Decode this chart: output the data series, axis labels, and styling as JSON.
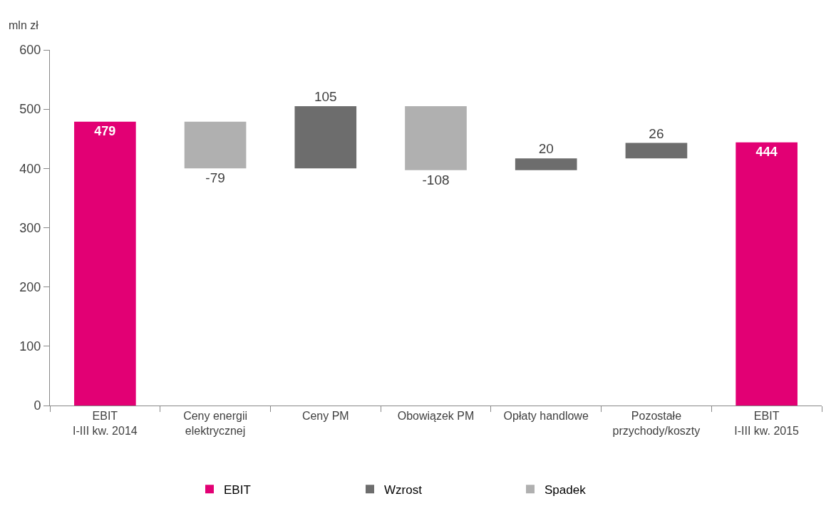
{
  "chart_data": {
    "type": "bar",
    "ylabel": "mln zł",
    "categories": [
      "EBIT\nI-III kw. 2014",
      "Ceny energii\nelektrycznej",
      "Ceny PM",
      "Obowiązek PM",
      "Opłaty handlowe",
      "Pozostałe\nprzychody/koszty",
      "EBIT\nI-III kw. 2015"
    ],
    "series": [
      {
        "name": "EBIT",
        "color": "#e20074",
        "values": [
          479,
          null,
          null,
          null,
          null,
          null,
          444
        ],
        "base": [
          0,
          null,
          null,
          null,
          null,
          null,
          0
        ]
      },
      {
        "name": "Wzrost",
        "color": "#6d6d6d",
        "values": [
          null,
          null,
          105,
          null,
          20,
          26,
          null
        ],
        "base": [
          null,
          null,
          400,
          null,
          397,
          417,
          null
        ]
      },
      {
        "name": "Spadek",
        "color": "#b0b0b0",
        "values": [
          null,
          -79,
          null,
          -108,
          null,
          null,
          null
        ],
        "base": [
          null,
          479,
          null,
          505,
          null,
          null,
          null
        ]
      }
    ],
    "ylim": [
      0,
      600
    ],
    "yticks": [
      0,
      100,
      200,
      300,
      400,
      500,
      600
    ],
    "data_labels": true,
    "legend": "bottom"
  }
}
